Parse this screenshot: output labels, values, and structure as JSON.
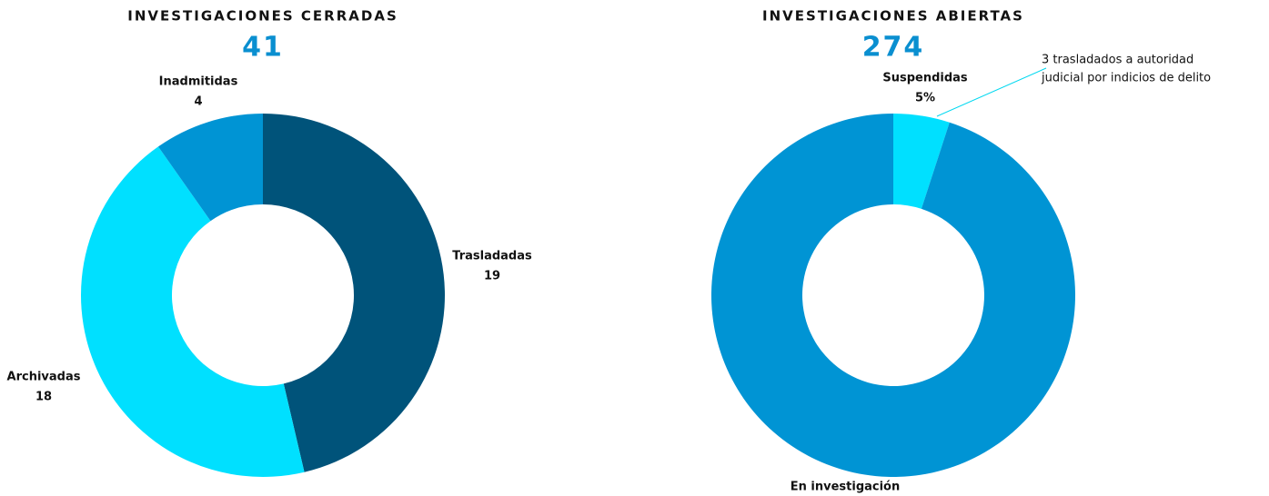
{
  "chart_data": [
    {
      "type": "donut",
      "title": "INVESTIGACIONES CERRADAS",
      "total": 41,
      "categories": [
        "Trasladadas",
        "Archivadas",
        "Inadmitidas"
      ],
      "values": [
        19,
        18,
        4
      ],
      "colors": [
        "#00537a",
        "#00e0ff",
        "#0094d4"
      ]
    },
    {
      "type": "donut",
      "title": "INVESTIGACIONES ABIERTAS",
      "total": 274,
      "categories": [
        "Suspendidas",
        "En investigación"
      ],
      "values": [
        5,
        95
      ],
      "value_labels": [
        "5%",
        null
      ],
      "colors": [
        "#00e0ff",
        "#0094d4"
      ],
      "annotation": [
        "3 trasladados a autoridad",
        "judicial por indicios de delito"
      ]
    }
  ]
}
